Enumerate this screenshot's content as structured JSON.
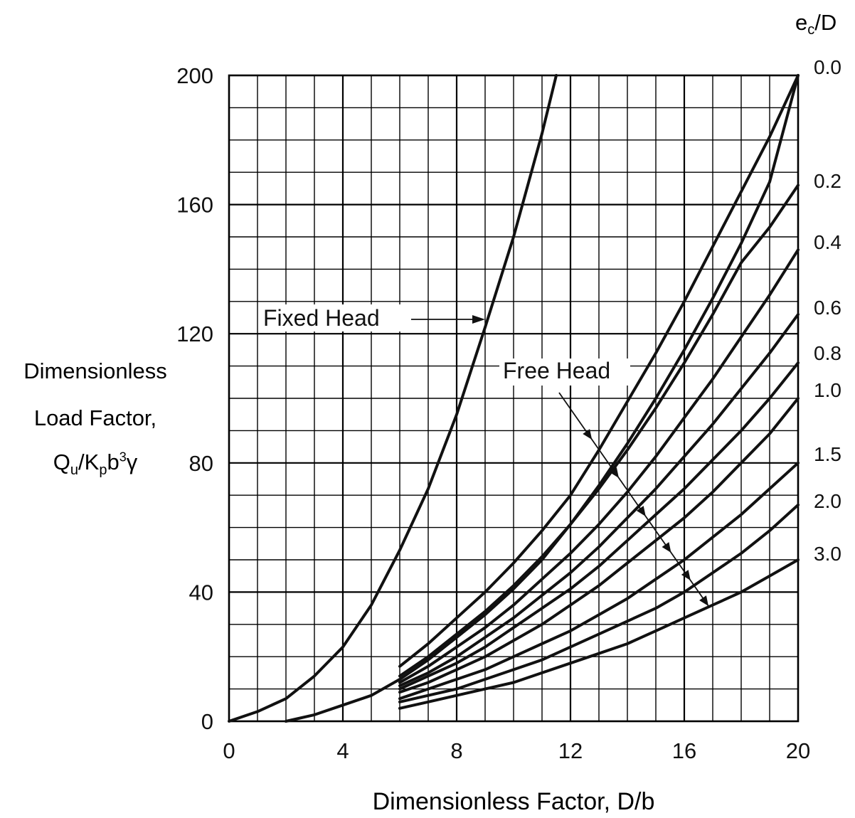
{
  "chart_data": {
    "type": "line",
    "xlabel": "Dimensionless Factor, D/b",
    "ylabel_lines": [
      "Dimensionless",
      "Load Factor,",
      "Q_u/K_p b^3 γ"
    ],
    "xlim": [
      0,
      20
    ],
    "ylim": [
      0,
      200
    ],
    "x_ticks": [
      "0",
      "4",
      "8",
      "12",
      "16",
      "20"
    ],
    "y_ticks": [
      "0",
      "40",
      "80",
      "120",
      "160",
      "200"
    ],
    "grid": true,
    "right_axis_title": "e_c/D",
    "annotations": {
      "fixed_head": "Fixed Head",
      "free_head": "Free Head"
    },
    "series": [
      {
        "name": "Fixed Head",
        "x": [
          0,
          1,
          2,
          3,
          4,
          5,
          6,
          7,
          8,
          9,
          10,
          11,
          11.5
        ],
        "y": [
          0,
          3,
          7,
          14,
          23,
          36,
          53,
          72,
          95,
          122,
          150,
          182,
          200
        ]
      },
      {
        "name": "0.0",
        "x": [
          2,
          3,
          4,
          5,
          6,
          7,
          8,
          9,
          10,
          11,
          12,
          13,
          14,
          15,
          16,
          17,
          18,
          19,
          20
        ],
        "y": [
          0,
          2,
          5,
          8,
          13,
          19,
          26,
          33,
          41,
          50,
          61,
          73,
          86,
          100,
          115,
          131,
          148,
          167,
          200
        ]
      },
      {
        "name": "0.2",
        "x": [
          6,
          7,
          8,
          9,
          10,
          11,
          12,
          13,
          14,
          15,
          16,
          17,
          18,
          19,
          20
        ],
        "y": [
          17,
          24,
          32,
          40,
          49,
          59,
          70,
          84,
          99,
          114,
          130,
          147,
          164,
          181,
          200
        ]
      },
      {
        "name": "0.4",
        "x": [
          6,
          7,
          8,
          9,
          10,
          11,
          12,
          13,
          14,
          15,
          16,
          17,
          18,
          19,
          20
        ],
        "y": [
          14,
          20,
          27,
          34,
          42,
          51,
          61,
          72,
          84,
          97,
          111,
          126,
          142,
          153,
          166
        ]
      },
      {
        "name": "0.6",
        "x": [
          6,
          7,
          8,
          9,
          10,
          11,
          12,
          13,
          14,
          15,
          16,
          17,
          18,
          19,
          20
        ],
        "y": [
          12,
          17,
          23,
          29,
          36,
          44,
          52,
          61,
          71,
          82,
          94,
          106,
          119,
          132,
          146
        ]
      },
      {
        "name": "0.8",
        "x": [
          6,
          7,
          8,
          9,
          10,
          11,
          12,
          13,
          14,
          15,
          16,
          17,
          18,
          19,
          20
        ],
        "y": [
          11,
          15,
          20,
          26,
          32,
          39,
          46,
          54,
          63,
          72,
          82,
          92,
          103,
          114,
          126
        ]
      },
      {
        "name": "1.0",
        "x": [
          6,
          7,
          8,
          9,
          10,
          11,
          12,
          13,
          14,
          15,
          16,
          17,
          18,
          19,
          20
        ],
        "y": [
          10,
          14,
          18,
          23,
          29,
          35,
          41,
          48,
          56,
          64,
          72,
          81,
          90,
          100,
          111
        ]
      },
      {
        "name": "1.5",
        "x": [
          6,
          7,
          8,
          9,
          10,
          11,
          12,
          13,
          14,
          15,
          16,
          17,
          18,
          19,
          20
        ],
        "y": [
          9,
          12,
          16,
          20,
          25,
          30,
          36,
          42,
          49,
          56,
          63,
          71,
          80,
          89,
          100
        ]
      },
      {
        "name": "2.0",
        "x": [
          6,
          7,
          8,
          9,
          10,
          11,
          12,
          13,
          14,
          15,
          16,
          17,
          18,
          19,
          20
        ],
        "y": [
          7,
          10,
          13,
          16,
          20,
          24,
          28,
          33,
          38,
          44,
          50,
          57,
          64,
          72,
          80
        ]
      },
      {
        "name": "3.0",
        "x": [
          6,
          7,
          8,
          9,
          10,
          11,
          12,
          13,
          14,
          15,
          16,
          17,
          18,
          19,
          20
        ],
        "y": [
          6,
          8,
          10,
          13,
          16,
          19,
          23,
          27,
          31,
          35,
          40,
          46,
          52,
          59,
          67
        ]
      },
      {
        "name": "",
        "x": [
          6,
          7,
          8,
          9,
          10,
          11,
          12,
          13,
          14,
          15,
          16,
          17,
          18,
          19,
          20
        ],
        "y": [
          4,
          6,
          8,
          10,
          12,
          15,
          18,
          21,
          24,
          28,
          32,
          36,
          40,
          45,
          50
        ]
      }
    ]
  }
}
